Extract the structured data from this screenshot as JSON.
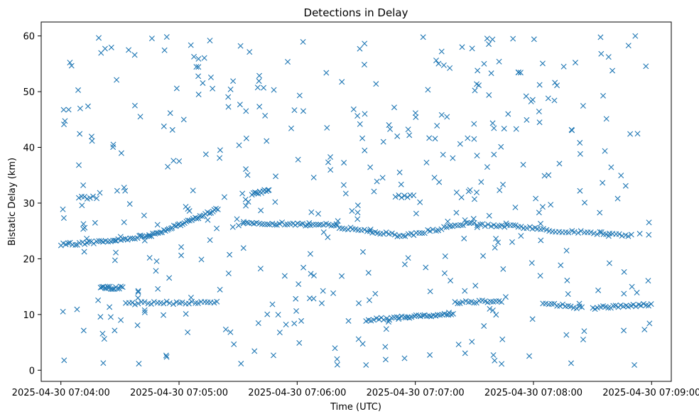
{
  "chart_data": {
    "type": "scatter",
    "title": "Detections in Delay",
    "xlabel": "Time (UTC)",
    "ylabel": "Bistatic Delay (km)",
    "x_unit": "seconds after 2025-04-30 07:04:00 UTC",
    "xlim": [
      -10,
      310
    ],
    "ylim": [
      -2,
      62.5
    ],
    "x_ticks": [
      {
        "value": 0,
        "label": "2025-04-30 07:04:00"
      },
      {
        "value": 60,
        "label": "2025-04-30 07:05:00"
      },
      {
        "value": 120,
        "label": "2025-04-30 07:06:00"
      },
      {
        "value": 180,
        "label": "2025-04-30 07:07:00"
      },
      {
        "value": 240,
        "label": "2025-04-30 07:08:00"
      },
      {
        "value": 300,
        "label": "2025-04-30 07:09:00"
      }
    ],
    "y_ticks": [
      {
        "value": 0,
        "label": "0"
      },
      {
        "value": 10,
        "label": "10"
      },
      {
        "value": 20,
        "label": "20"
      },
      {
        "value": 30,
        "label": "30"
      },
      {
        "value": 40,
        "label": "40"
      },
      {
        "value": 50,
        "label": "50"
      },
      {
        "value": 60,
        "label": "60"
      }
    ],
    "grid": false,
    "legend": "none",
    "marker": "x",
    "color": "#1f77b4",
    "tracks": [
      {
        "from": [
          0,
          22.5
        ],
        "to": [
          28,
          23.3
        ],
        "step": 1.2
      },
      {
        "from": [
          28,
          23.3
        ],
        "to": [
          45,
          24.2
        ],
        "step": 1.2
      },
      {
        "from": [
          45,
          24.2
        ],
        "to": [
          60,
          26.0
        ],
        "step": 0.9
      },
      {
        "from": [
          60,
          26.0
        ],
        "to": [
          80,
          29.0
        ],
        "step": 0.9
      },
      {
        "from": [
          97,
          31.5
        ],
        "to": [
          106,
          32.5
        ],
        "step": 0.8
      },
      {
        "from": [
          93,
          26.5
        ],
        "to": [
          140,
          26.0
        ],
        "step": 1.3
      },
      {
        "from": [
          140,
          25.8
        ],
        "to": [
          175,
          24.0
        ],
        "step": 1.4
      },
      {
        "from": [
          175,
          24.2
        ],
        "to": [
          210,
          26.5
        ],
        "step": 1.4
      },
      {
        "from": [
          210,
          26.2
        ],
        "to": [
          245,
          25.5
        ],
        "step": 1.4
      },
      {
        "from": [
          245,
          25.2
        ],
        "to": [
          290,
          24.2
        ],
        "step": 1.6
      },
      {
        "from": [
          20,
          14.8
        ],
        "to": [
          32,
          14.8
        ],
        "step": 0.8
      },
      {
        "from": [
          33,
          12.0
        ],
        "to": [
          80,
          12.2
        ],
        "step": 1.6
      },
      {
        "from": [
          155,
          9.0
        ],
        "to": [
          175,
          9.5
        ],
        "step": 1.3
      },
      {
        "from": [
          175,
          9.5
        ],
        "to": [
          200,
          10.2
        ],
        "step": 1.1
      },
      {
        "from": [
          200,
          12.2
        ],
        "to": [
          225,
          12.5
        ],
        "step": 1.4
      },
      {
        "from": [
          245,
          12.0
        ],
        "to": [
          265,
          11.2
        ],
        "step": 1.4
      },
      {
        "from": [
          270,
          11.2
        ],
        "to": [
          300,
          11.8
        ],
        "step": 1.3
      },
      {
        "from": [
          9,
          31.0
        ],
        "to": [
          18,
          31.0
        ],
        "step": 1.5
      },
      {
        "from": [
          170,
          31.2
        ],
        "to": [
          180,
          31.2
        ],
        "step": 1.5
      }
    ],
    "clutter_points": 430,
    "clutter_seed": 7
  }
}
